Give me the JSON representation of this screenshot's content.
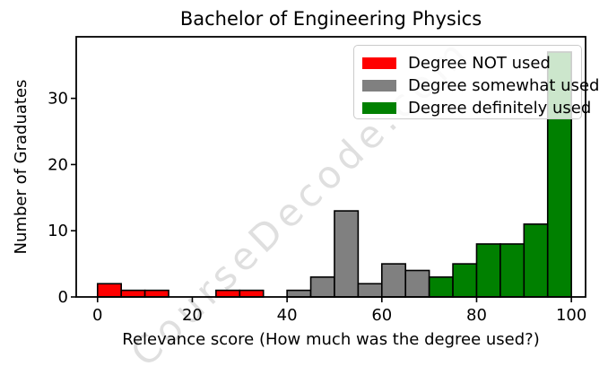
{
  "figure": {
    "watermark": "CourseDecode.com"
  },
  "chart_data": {
    "type": "bar",
    "subtype": "histogram",
    "title": "Bachelor of Engineering Physics",
    "xlabel": "Relevance score (How much was the degree used?)",
    "ylabel": "Number of Graduates",
    "bin_width": 5,
    "xticks": [
      0,
      20,
      40,
      60,
      80,
      100
    ],
    "yticks": [
      0,
      10,
      20,
      30
    ],
    "xlim": [
      -4.5,
      103
    ],
    "ylim": [
      0,
      39.3
    ],
    "grid": false,
    "legend_position": "upper right",
    "series": [
      {
        "name": "Degree NOT used",
        "color": "#ff0000",
        "bins": [
          [
            0,
            2
          ],
          [
            5,
            1
          ],
          [
            10,
            1
          ],
          [
            25,
            1
          ],
          [
            30,
            1
          ]
        ]
      },
      {
        "name": "Degree somewhat used",
        "color": "#808080",
        "bins": [
          [
            40,
            1
          ],
          [
            45,
            3
          ],
          [
            50,
            13
          ],
          [
            55,
            2
          ],
          [
            60,
            5
          ],
          [
            65,
            4
          ]
        ]
      },
      {
        "name": "Degree definitely used",
        "color": "#008000",
        "bins": [
          [
            70,
            3
          ],
          [
            75,
            5
          ],
          [
            80,
            8
          ],
          [
            85,
            8
          ],
          [
            90,
            11
          ],
          [
            95,
            37
          ]
        ]
      }
    ]
  }
}
